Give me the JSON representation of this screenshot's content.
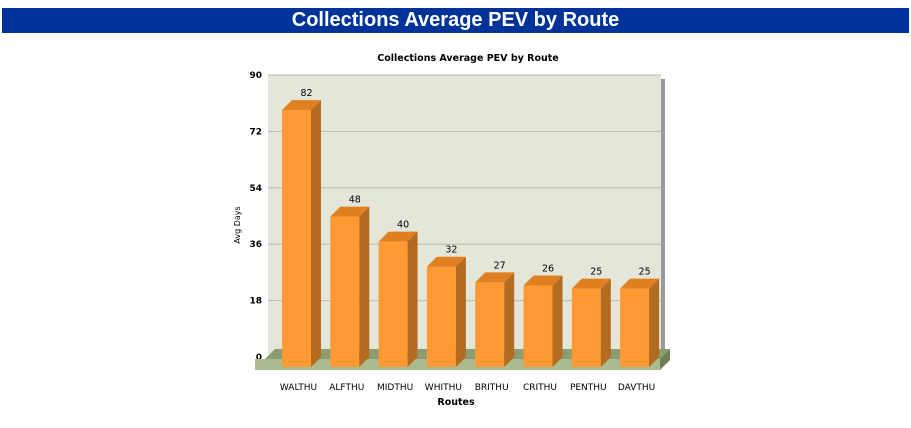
{
  "page": {
    "title": "Collections Average PEV by Route"
  },
  "chart_data": {
    "type": "bar",
    "style": "3d",
    "title": "Collections Average PEV by Route",
    "xlabel": "Routes",
    "ylabel": "Avg Days",
    "categories": [
      "WALTHU",
      "ALFTHU",
      "MIDTHU",
      "WHITHU",
      "BRITHU",
      "CRITHU",
      "PENTHU",
      "DAVTHU"
    ],
    "values": [
      82,
      48,
      40,
      32,
      27,
      26,
      25,
      25
    ],
    "data_labels": [
      "82",
      "48",
      "40",
      "32",
      "27",
      "26",
      "25",
      "25"
    ],
    "ylim": [
      0,
      90
    ],
    "yticks": [
      0,
      18,
      36,
      54,
      72,
      90
    ],
    "grid": true,
    "legend": "none",
    "colors": {
      "header_bg": "#003399",
      "header_text": "#ffffff",
      "plot_bg": "#e3e6d9",
      "gridline": "#b9bca8",
      "floor": "#a9bb8f",
      "floor_side": "#8a9c70",
      "bar_front": "#ff9933",
      "bar_top": "#e08020",
      "bar_side": "#b36b20"
    }
  }
}
